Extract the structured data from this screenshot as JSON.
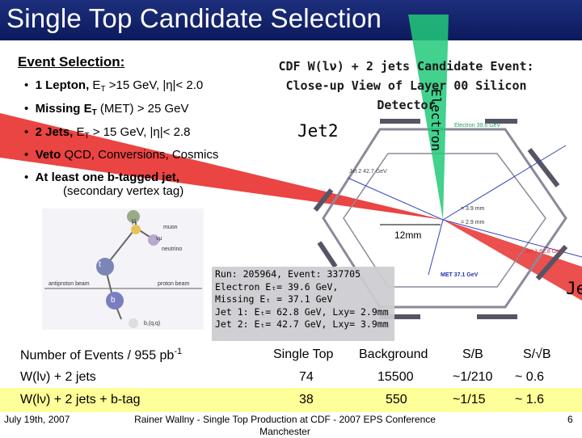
{
  "title": "Single Top Candidate Selection",
  "event_selection": {
    "heading": "Event Selection:",
    "bullets": [
      {
        "bold": "1 Lepton,",
        "rest": " E",
        "sub": "T",
        "tail": " >15 GeV, |η|< 2.0"
      },
      {
        "bold": "Missing E",
        "sub": "T",
        "tail": " (MET) > 25 GeV"
      },
      {
        "bold": "2 Jets,",
        "rest": " E",
        "sub": "T",
        "tail": " > 15 GeV, |η|< 2.8"
      },
      {
        "bold": "Veto",
        "tail": " QCD, Conversions, Cosmics"
      },
      {
        "bold": "At least one b-tagged jet,",
        "line2": "(secondary vertex tag)"
      }
    ]
  },
  "event_display": {
    "title_line1": "CDF W(lν) + 2 jets Candidate Event:",
    "title_line2": "Close-up View of Layer 00 Silicon Detector",
    "jet2_label": "Jet2",
    "electron_label": "Electron",
    "jet_cut_label": "Jet",
    "scale_label": "12mm",
    "micro_labels": [
      "Jet 2 42.7 GeV",
      "= 3.9 mm",
      "= 2.9 mm",
      "MET 37.1 GeV",
      "Jet 1 62.8 GeV",
      "Electron 39.6 GeV"
    ]
  },
  "feynman_labels": [
    "μ",
    "muon",
    "νμ",
    "neutrino",
    "t",
    "b",
    "antiproton beam",
    "proton beam",
    "b,(q,q)"
  ],
  "run_info": {
    "line1": "Run: 205964, Event: 337705",
    "line2": "Electron Eₜ= 39.6 GeV,",
    "line3": "Missing Eₜ = 37.1 GeV",
    "line4": "Jet 1: Eₜ= 62.8 GeV, Lxy= 2.9mm",
    "line5": "Jet 2: Eₜ= 42.7 GeV, Lxy= 3.9mm"
  },
  "table": {
    "header": {
      "label": "Number of Events / 955 pb",
      "sup": "-1",
      "col1": "Single Top",
      "col2": "Background",
      "col3": "S/B",
      "col4": "S/√B"
    },
    "rows": [
      {
        "label": "W(lν) + 2 jets",
        "col1": "74",
        "col2": "15500",
        "col3": "~1/210",
        "col4": "~ 0.6"
      },
      {
        "label": "W(lν) + 2 jets + b-tag",
        "col1": "38",
        "col2": "550",
        "col3": "~1/15",
        "col4": "~ 1.6"
      }
    ]
  },
  "footer": {
    "date": "July 19th, 2007",
    "center": "Rainer Wallny - Single Top Production at CDF - 2007 EPS Conference Manchester",
    "page": "6"
  },
  "colors": {
    "title_bg": "#0c1a5c",
    "highlight_row": "#ffff99",
    "jet_cone": "#e8302f",
    "electron_cone": "#22c97a"
  }
}
